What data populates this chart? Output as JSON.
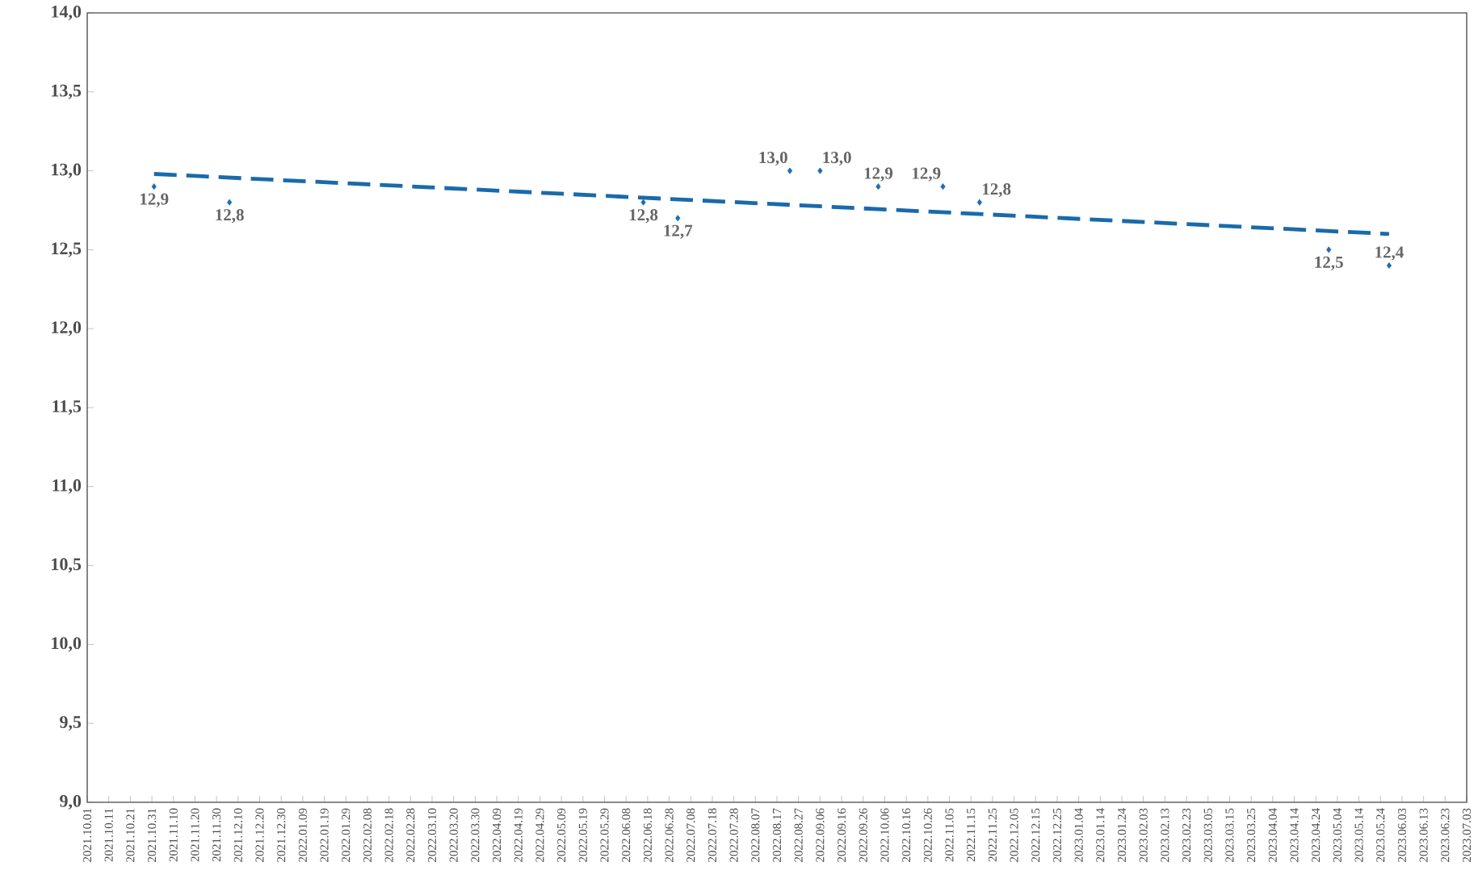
{
  "chart_data": {
    "type": "scatter",
    "grid": false,
    "xlim": [
      "2021-10-01",
      "2023-07-03"
    ],
    "ylim": [
      9,
      14
    ],
    "yticks": [
      {
        "value": 9,
        "label": "9,0"
      },
      {
        "value": 9.5,
        "label": "9,5"
      },
      {
        "value": 10,
        "label": "10,0"
      },
      {
        "value": 10.5,
        "label": "10,5"
      },
      {
        "value": 11,
        "label": "11,0"
      },
      {
        "value": 11.5,
        "label": "11,5"
      },
      {
        "value": 12,
        "label": "12,0"
      },
      {
        "value": 12.5,
        "label": "12,5"
      },
      {
        "value": 13,
        "label": "13,0"
      },
      {
        "value": 13.5,
        "label": "13,5"
      },
      {
        "value": 14,
        "label": "14,0"
      }
    ],
    "xticks": [
      {
        "value": "2021-10-01",
        "label": "2021.10.01"
      },
      {
        "value": "2021-10-11",
        "label": "2021.10.11"
      },
      {
        "value": "2021-10-21",
        "label": "2021.10.21"
      },
      {
        "value": "2021-10-31",
        "label": "2021.10.31"
      },
      {
        "value": "2021-11-10",
        "label": "2021.11.10"
      },
      {
        "value": "2021-11-20",
        "label": "2021.11.20"
      },
      {
        "value": "2021-11-30",
        "label": "2021.11.30"
      },
      {
        "value": "2021-12-10",
        "label": "2021.12.10"
      },
      {
        "value": "2021-12-20",
        "label": "2021.12.20"
      },
      {
        "value": "2021-12-30",
        "label": "2021.12.30"
      },
      {
        "value": "2022-01-09",
        "label": "2022.01.09"
      },
      {
        "value": "2022-01-19",
        "label": "2022.01.19"
      },
      {
        "value": "2022-01-29",
        "label": "2022.01.29"
      },
      {
        "value": "2022-02-08",
        "label": "2022.02.08"
      },
      {
        "value": "2022-02-18",
        "label": "2022.02.18"
      },
      {
        "value": "2022-02-28",
        "label": "2022.02.28"
      },
      {
        "value": "2022-03-10",
        "label": "2022.03.10"
      },
      {
        "value": "2022-03-20",
        "label": "2022.03.20"
      },
      {
        "value": "2022-03-30",
        "label": "2022.03.30"
      },
      {
        "value": "2022-04-09",
        "label": "2022.04.09"
      },
      {
        "value": "2022-04-19",
        "label": "2022.04.19"
      },
      {
        "value": "2022-04-29",
        "label": "2022.04.29"
      },
      {
        "value": "2022-05-09",
        "label": "2022.05.09"
      },
      {
        "value": "2022-05-19",
        "label": "2022.05.19"
      },
      {
        "value": "2022-05-29",
        "label": "2022.05.29"
      },
      {
        "value": "2022-06-08",
        "label": "2022.06.08"
      },
      {
        "value": "2022-06-18",
        "label": "2022.06.18"
      },
      {
        "value": "2022-06-28",
        "label": "2022.06.28"
      },
      {
        "value": "2022-07-08",
        "label": "2022.07.08"
      },
      {
        "value": "2022-07-18",
        "label": "2022.07.18"
      },
      {
        "value": "2022-07-28",
        "label": "2022.07.28"
      },
      {
        "value": "2022-08-07",
        "label": "2022.08.07"
      },
      {
        "value": "2022-08-17",
        "label": "2022.08.17"
      },
      {
        "value": "2022-08-27",
        "label": "2022.08.27"
      },
      {
        "value": "2022-09-06",
        "label": "2022.09.06"
      },
      {
        "value": "2022-09-16",
        "label": "2022.09.16"
      },
      {
        "value": "2022-09-26",
        "label": "2022.09.26"
      },
      {
        "value": "2022-10-06",
        "label": "2022.10.06"
      },
      {
        "value": "2022-10-16",
        "label": "2022.10.16"
      },
      {
        "value": "2022-10-26",
        "label": "2022.10.26"
      },
      {
        "value": "2022-11-05",
        "label": "2022.11.05"
      },
      {
        "value": "2022-11-15",
        "label": "2022.11.15"
      },
      {
        "value": "2022-11-25",
        "label": "2022.11.25"
      },
      {
        "value": "2022-12-05",
        "label": "2022.12.05"
      },
      {
        "value": "2022-12-15",
        "label": "2022.12.15"
      },
      {
        "value": "2022-12-25",
        "label": "2022.12.25"
      },
      {
        "value": "2023-01-04",
        "label": "2023.01.04"
      },
      {
        "value": "2023-01-14",
        "label": "2023.01.14"
      },
      {
        "value": "2023-01-24",
        "label": "2023.01.24"
      },
      {
        "value": "2023-02-03",
        "label": "2023.02.03"
      },
      {
        "value": "2023-02-13",
        "label": "2023.02.13"
      },
      {
        "value": "2023-02-23",
        "label": "2023.02.23"
      },
      {
        "value": "2023-03-05",
        "label": "2023.03.05"
      },
      {
        "value": "2023-03-15",
        "label": "2023.03.15"
      },
      {
        "value": "2023-03-25",
        "label": "2023.03.25"
      },
      {
        "value": "2023-04-04",
        "label": "2023.04.04"
      },
      {
        "value": "2023-04-14",
        "label": "2023.04.14"
      },
      {
        "value": "2023-04-24",
        "label": "2023.04.24"
      },
      {
        "value": "2023-05-04",
        "label": "2023.05.04"
      },
      {
        "value": "2023-05-14",
        "label": "2023.05.14"
      },
      {
        "value": "2023-05-24",
        "label": "2023.05.24"
      },
      {
        "value": "2023-06-03",
        "label": "2023.06.03"
      },
      {
        "value": "2023-06-13",
        "label": "2023.06.13"
      },
      {
        "value": "2023-06-23",
        "label": "2023.06.23"
      },
      {
        "value": "2023-07-03",
        "label": "2023.07.03"
      }
    ],
    "series": [
      {
        "marker": "diamond",
        "color": "#1f6db3",
        "x": [
          "2021-11-01",
          "2021-12-06",
          "2022-06-16",
          "2022-07-02",
          "2022-08-23",
          "2022-09-06",
          "2022-10-03",
          "2022-11-02",
          "2022-11-19",
          "2023-04-30",
          "2023-05-28"
        ],
        "values": [
          12.9,
          12.8,
          12.8,
          12.7,
          13.0,
          13.0,
          12.9,
          12.9,
          12.8,
          12.5,
          12.4
        ],
        "value_labels": [
          "12,9",
          "12,8",
          "12,8",
          "12,7",
          "13,0",
          "13,0",
          "12,9",
          "12,9",
          "12,8",
          "12,5",
          "12,4"
        ]
      },
      {
        "type": "line",
        "color": "#1a6aab",
        "line_style": "dashed",
        "x": [
          "2021-11-01",
          "2023-05-28"
        ],
        "values": [
          12.98,
          12.6
        ]
      }
    ]
  }
}
